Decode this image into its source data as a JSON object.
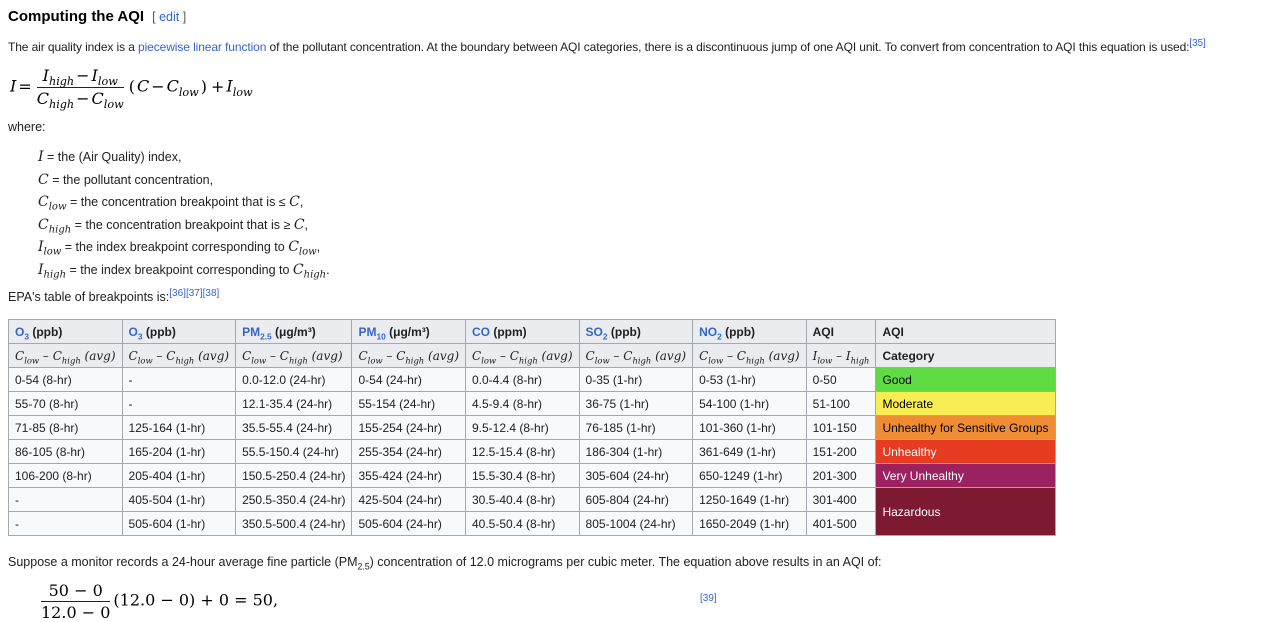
{
  "heading": {
    "title": "Computing the AQI",
    "edit_open": "[",
    "edit_label": "edit",
    "edit_close": "]"
  },
  "intro": {
    "pre": "The air quality index is a ",
    "link": "piecewise linear function",
    "post": " of the pollutant concentration. At the boundary between AQI categories, there is a discontinuous jump of one AQI unit. To convert from concentration to AQI this equation is used:",
    "ref": "[35]"
  },
  "formula1": {
    "lhs": "I",
    "eq": "=",
    "num": {
      "a": "I",
      "a_sub": "high",
      "op": "−",
      "b": "I",
      "b_sub": "low"
    },
    "den": {
      "a": "C",
      "a_sub": "high",
      "op": "−",
      "b": "C",
      "b_sub": "low"
    },
    "open": "(",
    "body_a": "C",
    "body_op": "−",
    "body_b": "C",
    "body_b_sub": "low",
    "close": ")",
    "plus": "+",
    "tail": "I",
    "tail_sub": "low"
  },
  "where_label": "where:",
  "definitions": [
    {
      "sym": "I",
      "sym_sub": "",
      "text": "= the (Air Quality) index,",
      "tail": "",
      "tail_sub": "",
      "end": ""
    },
    {
      "sym": "C",
      "sym_sub": "",
      "text": "= the pollutant concentration,",
      "tail": "",
      "tail_sub": "",
      "end": ""
    },
    {
      "sym": "C",
      "sym_sub": "low",
      "text": "= the concentration breakpoint that is ≤ ",
      "tail": "C",
      "tail_sub": "",
      "end": ","
    },
    {
      "sym": "C",
      "sym_sub": "high",
      "text": "= the concentration breakpoint that is ≥ ",
      "tail": "C",
      "tail_sub": "",
      "end": ","
    },
    {
      "sym": "I",
      "sym_sub": "low",
      "text": "= the index breakpoint corresponding to ",
      "tail": "C",
      "tail_sub": "low",
      "end": ","
    },
    {
      "sym": "I",
      "sym_sub": "high",
      "text": "= the index breakpoint corresponding to ",
      "tail": "C",
      "tail_sub": "high",
      "end": "."
    }
  ],
  "breakpoints_intro": {
    "text": "EPA's table of breakpoints is:",
    "refs": "[36][37][38]"
  },
  "table": {
    "header_row1": [
      {
        "link": "O",
        "link_sub": "3",
        "unit": " (ppb)"
      },
      {
        "link": "O",
        "link_sub": "3",
        "unit": " (ppb)"
      },
      {
        "link": "PM",
        "link_sub": "2.5",
        "unit": " (μg/m³)"
      },
      {
        "link": "PM",
        "link_sub": "10",
        "unit": " (μg/m³)"
      },
      {
        "link": "CO",
        "link_sub": "",
        "unit": " (ppm)"
      },
      {
        "link": "SO",
        "link_sub": "2",
        "unit": " (ppb)"
      },
      {
        "link": "NO",
        "link_sub": "2",
        "unit": " (ppb)"
      },
      {
        "text": "AQI"
      },
      {
        "text": "AQI"
      }
    ],
    "header_row2": [
      {
        "v1": "C",
        "s1": "low",
        "mid": " – ",
        "v2": "C",
        "s2": "high",
        "suffix": " (avg)"
      },
      {
        "v1": "C",
        "s1": "low",
        "mid": " – ",
        "v2": "C",
        "s2": "high",
        "suffix": " (avg)"
      },
      {
        "v1": "C",
        "s1": "low",
        "mid": " – ",
        "v2": "C",
        "s2": "high",
        "suffix": " (avg)"
      },
      {
        "v1": "C",
        "s1": "low",
        "mid": " – ",
        "v2": "C",
        "s2": "high",
        "suffix": " (avg)"
      },
      {
        "v1": "C",
        "s1": "low",
        "mid": " – ",
        "v2": "C",
        "s2": "high",
        "suffix": " (avg)"
      },
      {
        "v1": "C",
        "s1": "low",
        "mid": " – ",
        "v2": "C",
        "s2": "high",
        "suffix": " (avg)"
      },
      {
        "v1": "C",
        "s1": "low",
        "mid": " – ",
        "v2": "C",
        "s2": "high",
        "suffix": " (avg)"
      },
      {
        "v1": "I",
        "s1": "low",
        "mid": " – ",
        "v2": "I",
        "s2": "high",
        "suffix": ""
      },
      {
        "text": "Category"
      }
    ],
    "rows": [
      {
        "cells": [
          "0-54 (8-hr)",
          "-",
          "0.0-12.0 (24-hr)",
          "0-54 (24-hr)",
          "0.0-4.4 (8-hr)",
          "0-35 (1-hr)",
          "0-53 (1-hr)",
          "0-50"
        ],
        "category": {
          "label": "Good",
          "bg": "#5fdb43",
          "fg": "#000000",
          "rowspan": 1
        }
      },
      {
        "cells": [
          "55-70 (8-hr)",
          "-",
          "12.1-35.4 (24-hr)",
          "55-154 (24-hr)",
          "4.5-9.4 (8-hr)",
          "36-75 (1-hr)",
          "54-100 (1-hr)",
          "51-100"
        ],
        "category": {
          "label": "Moderate",
          "bg": "#f8ee53",
          "fg": "#000000",
          "rowspan": 1
        }
      },
      {
        "cells": [
          "71-85 (8-hr)",
          "125-164 (1-hr)",
          "35.5-55.4 (24-hr)",
          "155-254 (24-hr)",
          "9.5-12.4 (8-hr)",
          "76-185 (1-hr)",
          "101-360 (1-hr)",
          "101-150"
        ],
        "category": {
          "label": "Unhealthy for Sensitive Groups",
          "bg": "#ef8c34",
          "fg": "#000000",
          "rowspan": 1
        }
      },
      {
        "cells": [
          "86-105 (8-hr)",
          "165-204 (1-hr)",
          "55.5-150.4 (24-hr)",
          "255-354 (24-hr)",
          "12.5-15.4 (8-hr)",
          "186-304 (1-hr)",
          "361-649 (1-hr)",
          "151-200"
        ],
        "category": {
          "label": "Unhealthy",
          "bg": "#e73c22",
          "fg": "#ffffff",
          "rowspan": 1
        }
      },
      {
        "cells": [
          "106-200 (8-hr)",
          "205-404 (1-hr)",
          "150.5-250.4 (24-hr)",
          "355-424 (24-hr)",
          "15.5-30.4 (8-hr)",
          "305-604 (24-hr)",
          "650-1249 (1-hr)",
          "201-300"
        ],
        "category": {
          "label": "Very Unhealthy",
          "bg": "#9c2161",
          "fg": "#ffffff",
          "rowspan": 1
        }
      },
      {
        "cells": [
          "-",
          "405-504 (1-hr)",
          "250.5-350.4 (24-hr)",
          "425-504 (24-hr)",
          "30.5-40.4 (8-hr)",
          "605-804 (24-hr)",
          "1250-1649 (1-hr)",
          "301-400"
        ],
        "category": {
          "label": "Hazardous",
          "bg": "#7d1a31",
          "fg": "#ffffff",
          "rowspan": 2
        }
      },
      {
        "cells": [
          "-",
          "505-604 (1-hr)",
          "350.5-500.4 (24-hr)",
          "505-604 (24-hr)",
          "40.5-50.4 (8-hr)",
          "805-1004 (24-hr)",
          "1650-2049 (1-hr)",
          "401-500"
        ],
        "category": null
      }
    ]
  },
  "example": {
    "pre": "Suppose a monitor records a 24-hour average fine particle (PM",
    "sub": "2.5",
    "post": ") concentration of 12.0 micrograms per cubic meter. The equation above results in an AQI of:"
  },
  "formula2": {
    "num": "50 − 0",
    "den": "12.0 − 0",
    "rest": "(12.0 − 0) + 0 = 50,"
  },
  "footer_ref": "[39]"
}
